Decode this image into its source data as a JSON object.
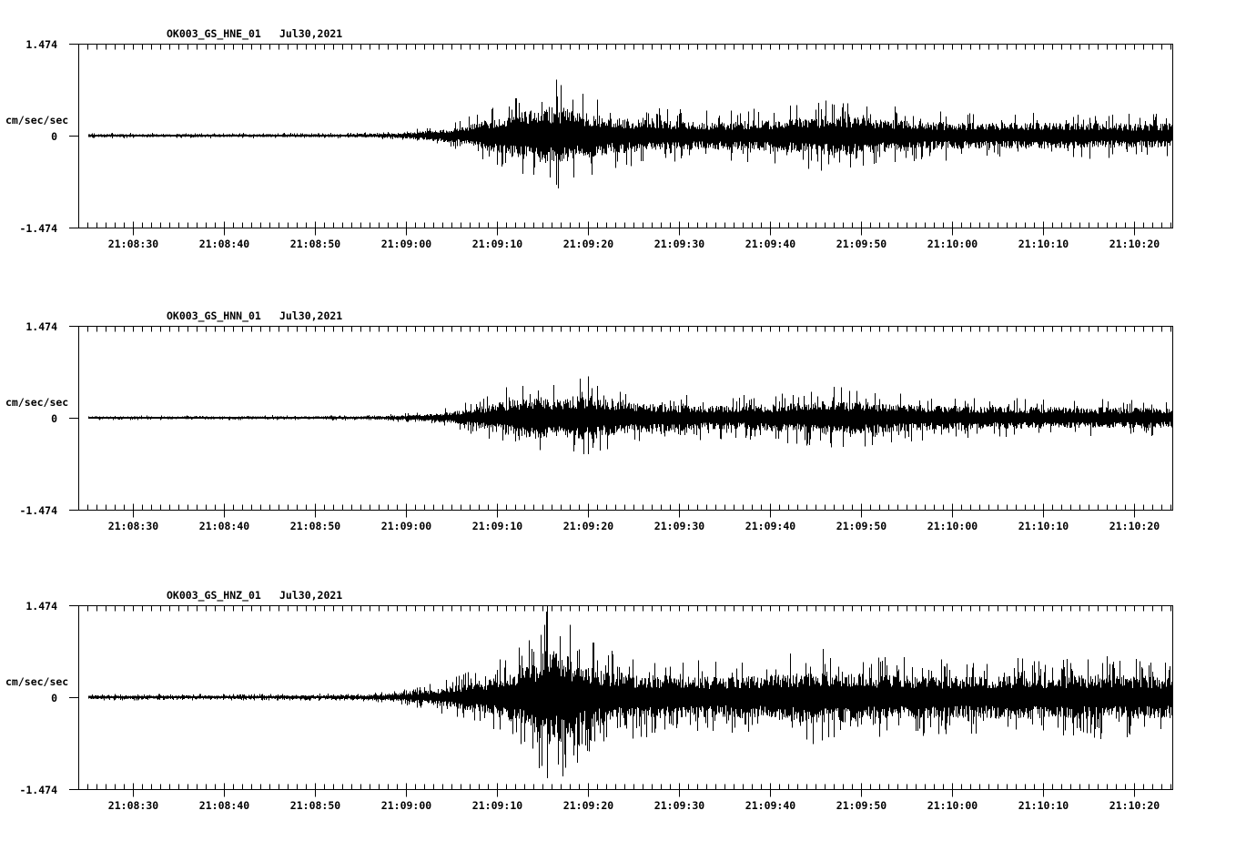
{
  "page": {
    "background_color": "#ffffff",
    "trace_color": "#000000"
  },
  "chart_data": [
    {
      "type": "line",
      "subtype": "seismogram",
      "title_station": "OK003_GS_HNE_01",
      "title_date": "Jul30,2021",
      "ylabel": "cm/sec/sec",
      "ylim": [
        -1.474,
        1.474
      ],
      "y_tick_labels": [
        "1.474",
        "0",
        "-1.474"
      ],
      "x_tick_labels": [
        "21:08:30",
        "21:08:40",
        "21:08:50",
        "21:09:00",
        "21:09:10",
        "21:09:20",
        "21:09:30",
        "21:09:40",
        "21:09:50",
        "21:10:00",
        "21:10:10",
        "21:10:20"
      ],
      "x_minor_tick_interval_s": 1,
      "x_major_tick_interval_s": 10,
      "grid": false,
      "legend": false,
      "envelope_peak_amplitude": {
        "units": "cm/sec/sec",
        "t_s": [
          1.1,
          25,
          31,
          35,
          37,
          40,
          42,
          44,
          46,
          48,
          50,
          52.5,
          54,
          56,
          58,
          60,
          63,
          68,
          72,
          76,
          80,
          83,
          86,
          90,
          94,
          98,
          104,
          112,
          120.2
        ],
        "amp": [
          0.044,
          0.044,
          0.052,
          0.074,
          0.118,
          0.177,
          0.265,
          0.398,
          0.516,
          0.649,
          0.766,
          0.899,
          0.766,
          0.649,
          0.56,
          0.501,
          0.457,
          0.413,
          0.413,
          0.457,
          0.531,
          0.59,
          0.545,
          0.472,
          0.413,
          0.383,
          0.383,
          0.369,
          0.354
        ]
      }
    },
    {
      "type": "line",
      "subtype": "seismogram",
      "title_station": "OK003_GS_HNN_01",
      "title_date": "Jul30,2021",
      "ylabel": "cm/sec/sec",
      "ylim": [
        -1.474,
        1.474
      ],
      "y_tick_labels": [
        "1.474",
        "0",
        "-1.474"
      ],
      "x_tick_labels": [
        "21:08:30",
        "21:08:40",
        "21:08:50",
        "21:09:00",
        "21:09:10",
        "21:09:20",
        "21:09:30",
        "21:09:40",
        "21:09:50",
        "21:10:00",
        "21:10:10",
        "21:10:20"
      ],
      "x_minor_tick_interval_s": 1,
      "x_major_tick_interval_s": 10,
      "grid": false,
      "legend": false,
      "envelope_peak_amplitude": {
        "units": "cm/sec/sec",
        "t_s": [
          1.1,
          25,
          31,
          35,
          38,
          40,
          42,
          44,
          46,
          48,
          50,
          52,
          54,
          56,
          58,
          60,
          64,
          68,
          72,
          76,
          80,
          83,
          86,
          90,
          94,
          98,
          104,
          112,
          120.2
        ],
        "amp": [
          0.037,
          0.041,
          0.044,
          0.066,
          0.103,
          0.147,
          0.221,
          0.324,
          0.442,
          0.56,
          0.634,
          0.59,
          0.619,
          0.663,
          0.531,
          0.457,
          0.398,
          0.369,
          0.354,
          0.398,
          0.457,
          0.501,
          0.472,
          0.413,
          0.369,
          0.339,
          0.324,
          0.31,
          0.295
        ]
      }
    },
    {
      "type": "line",
      "subtype": "seismogram",
      "title_station": "OK003_GS_HNZ_01",
      "title_date": "Jul30,2021",
      "ylabel": "cm/sec/sec",
      "ylim": [
        -1.474,
        1.474
      ],
      "y_tick_labels": [
        "1.474",
        "0",
        "-1.474"
      ],
      "x_tick_labels": [
        "21:08:30",
        "21:08:40",
        "21:08:50",
        "21:09:00",
        "21:09:10",
        "21:09:20",
        "21:09:30",
        "21:09:40",
        "21:09:50",
        "21:10:00",
        "21:10:10",
        "21:10:20"
      ],
      "x_minor_tick_interval_s": 1,
      "x_major_tick_interval_s": 10,
      "grid": false,
      "legend": false,
      "envelope_peak_amplitude": {
        "units": "cm/sec/sec",
        "t_s": [
          1.1,
          20,
          28,
          32,
          35,
          38,
          40,
          42,
          44,
          46,
          48,
          50,
          51.5,
          53,
          55,
          57,
          59,
          62,
          66,
          70,
          74,
          78,
          81,
          84,
          88,
          92,
          96,
          100,
          104,
          108,
          112,
          116,
          120.2
        ],
        "amp": [
          0.052,
          0.052,
          0.059,
          0.074,
          0.118,
          0.192,
          0.265,
          0.369,
          0.487,
          0.59,
          0.737,
          1.061,
          1.474,
          1.297,
          1.032,
          0.855,
          0.737,
          0.663,
          0.619,
          0.59,
          0.619,
          0.708,
          0.796,
          0.737,
          0.663,
          0.634,
          0.619,
          0.619,
          0.649,
          0.619,
          0.678,
          0.634,
          0.619
        ]
      }
    }
  ]
}
